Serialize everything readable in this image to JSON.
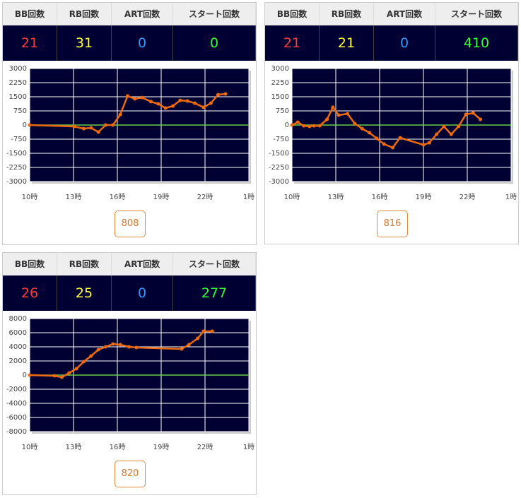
{
  "chart_data": [
    {
      "type": "line",
      "table_headers": [
        "BB回数",
        "RB回数",
        "ART回数",
        "スタート回数"
      ],
      "table_values": [
        "21",
        "31",
        "0",
        "0"
      ],
      "table_colors": [
        "#ff3b3b",
        "#ffff33",
        "#3399ff",
        "#33ff33"
      ],
      "label": "808",
      "x": [
        10,
        13.04,
        13.7,
        14.2,
        14.7,
        15.2,
        15.7,
        16.2,
        16.7,
        17.2,
        17.7,
        18.3,
        18.8,
        19.3,
        19.8,
        20.3,
        20.8,
        21.3,
        21.9,
        22.4,
        22.9,
        23.4
      ],
      "series": [
        {
          "color": "#ee6a10",
          "values": [
            0,
            -75,
            -190,
            -150,
            -375,
            0,
            0,
            560,
            1540,
            1390,
            1460,
            1240,
            1125,
            900,
            1010,
            1310,
            1275,
            1160,
            940,
            1160,
            1610,
            1650
          ]
        }
      ],
      "xlim": [
        10,
        25
      ],
      "xticks": [
        {
          "value": 10,
          "label": "10時"
        },
        {
          "value": 13,
          "label": "13時"
        },
        {
          "value": 16,
          "label": "16時"
        },
        {
          "value": 19,
          "label": "19時"
        },
        {
          "value": 22,
          "label": "22時"
        },
        {
          "value": 25,
          "label": "1時"
        }
      ],
      "ylim": [
        -3000,
        3000
      ],
      "yticks": [
        3000,
        2250,
        1500,
        750,
        0,
        -750,
        -1500,
        -2250,
        -3000
      ],
      "grid": true,
      "zero_line_color": "#66cc44",
      "background": "#000033"
    },
    {
      "type": "line",
      "table_headers": [
        "BB回数",
        "RB回数",
        "ART回数",
        "スタート回数"
      ],
      "table_values": [
        "21",
        "21",
        "0",
        "410"
      ],
      "table_colors": [
        "#ff3b3b",
        "#ffff33",
        "#3399ff",
        "#33ff33"
      ],
      "label": "816",
      "x": [
        10,
        10.4,
        10.8,
        11.2,
        11.5,
        11.9,
        12.4,
        12.8,
        13.2,
        13.8,
        14.3,
        14.8,
        15.3,
        15.8,
        16.3,
        16.9,
        17.4,
        19.0,
        19.4,
        19.9,
        20.4,
        20.9,
        21.4,
        21.9,
        22.4,
        22.9
      ],
      "series": [
        {
          "color": "#ee6a10",
          "values": [
            0,
            150,
            -40,
            -75,
            -40,
            -40,
            300,
            940,
            525,
            600,
            75,
            -190,
            -410,
            -710,
            -1010,
            -1200,
            -675,
            -1050,
            -940,
            -490,
            -75,
            -490,
            -75,
            560,
            640,
            300
          ]
        }
      ],
      "xlim": [
        10,
        25
      ],
      "xticks": [
        {
          "value": 10,
          "label": "10時"
        },
        {
          "value": 13,
          "label": "13時"
        },
        {
          "value": 16,
          "label": "16時"
        },
        {
          "value": 19,
          "label": "19時"
        },
        {
          "value": 22,
          "label": "22時"
        },
        {
          "value": 25,
          "label": "1時"
        }
      ],
      "ylim": [
        -3000,
        3000
      ],
      "yticks": [
        3000,
        2250,
        1500,
        750,
        0,
        -750,
        -1500,
        -2250,
        -3000
      ],
      "grid": true,
      "zero_line_color": "#66cc44",
      "background": "#000033"
    },
    {
      "type": "line",
      "table_headers": [
        "BB回数",
        "RB回数",
        "ART回数",
        "スタート回数"
      ],
      "table_values": [
        "26",
        "25",
        "0",
        "277"
      ],
      "table_colors": [
        "#ff3b3b",
        "#ffff33",
        "#3399ff",
        "#33ff33"
      ],
      "label": "820",
      "x": [
        10,
        11.7,
        12.2,
        12.7,
        13.2,
        13.7,
        14.2,
        14.7,
        15.2,
        15.7,
        16.2,
        16.8,
        17.3,
        20.4,
        20.9,
        21.5,
        21.9,
        22.5
      ],
      "series": [
        {
          "color": "#ee6a10",
          "values": [
            0,
            -100,
            -300,
            300,
            900,
            1900,
            2700,
            3600,
            4000,
            4400,
            4300,
            4000,
            3900,
            3700,
            4300,
            5200,
            6200,
            6200
          ]
        }
      ],
      "xlim": [
        10,
        25
      ],
      "xticks": [
        {
          "value": 10,
          "label": "10時"
        },
        {
          "value": 13,
          "label": "13時"
        },
        {
          "value": 16,
          "label": "16時"
        },
        {
          "value": 19,
          "label": "19時"
        },
        {
          "value": 22,
          "label": "22時"
        },
        {
          "value": 25,
          "label": "1時"
        }
      ],
      "ylim": [
        -8000,
        8000
      ],
      "yticks": [
        8000,
        6000,
        4000,
        2000,
        0,
        -2000,
        -4000,
        -6000,
        -8000
      ],
      "grid": true,
      "zero_line_color": "#66cc44",
      "background": "#000033"
    }
  ]
}
